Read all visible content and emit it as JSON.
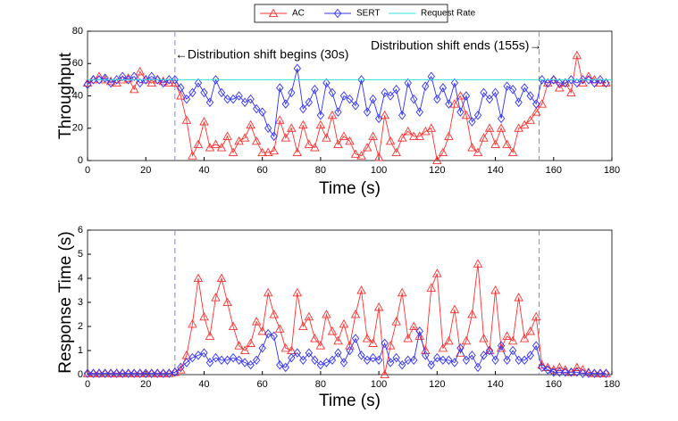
{
  "chart_data": [
    {
      "type": "line",
      "xlabel": "Time (s)",
      "ylabel": "Throughput",
      "xlim": [
        0,
        180
      ],
      "xticks": [
        0,
        20,
        40,
        60,
        80,
        100,
        120,
        140,
        160,
        180
      ],
      "ylim": [
        0,
        80
      ],
      "yticks": [
        0,
        20,
        40,
        60,
        80
      ],
      "x": [
        0,
        2,
        4,
        6,
        8,
        10,
        12,
        14,
        16,
        18,
        20,
        22,
        24,
        26,
        28,
        30,
        32,
        34,
        36,
        38,
        40,
        42,
        44,
        46,
        48,
        50,
        52,
        54,
        56,
        58,
        60,
        62,
        64,
        66,
        68,
        70,
        72,
        74,
        76,
        78,
        80,
        82,
        84,
        86,
        88,
        90,
        92,
        94,
        96,
        98,
        100,
        102,
        104,
        106,
        108,
        110,
        112,
        114,
        116,
        118,
        120,
        122,
        124,
        126,
        128,
        130,
        132,
        134,
        136,
        138,
        140,
        142,
        144,
        146,
        148,
        150,
        152,
        154,
        156,
        158,
        160,
        162,
        164,
        166,
        168,
        170,
        172,
        174,
        176,
        178
      ],
      "series": [
        {
          "name": "AC",
          "color": "#ff3030",
          "marker": "triangle",
          "values": [
            48,
            50,
            52,
            50,
            49,
            48,
            50,
            51,
            44,
            55,
            50,
            48,
            50,
            49,
            48,
            48,
            40,
            25,
            3,
            10,
            24,
            8,
            10,
            8,
            15,
            5,
            12,
            14,
            22,
            12,
            5,
            5,
            6,
            25,
            14,
            20,
            5,
            22,
            10,
            8,
            22,
            14,
            28,
            10,
            15,
            12,
            4,
            3,
            8,
            15,
            2,
            28,
            12,
            5,
            14,
            18,
            15,
            15,
            18,
            20,
            0,
            5,
            15,
            35,
            40,
            28,
            8,
            5,
            14,
            20,
            10,
            20,
            10,
            5,
            20,
            22,
            25,
            30,
            35,
            48,
            50,
            45,
            48,
            42,
            65,
            48,
            52,
            50,
            48,
            48
          ]
        },
        {
          "name": "SERT",
          "color": "#3030ff",
          "marker": "diamond",
          "values": [
            47,
            50,
            50,
            51,
            48,
            50,
            52,
            50,
            52,
            48,
            50,
            52,
            50,
            48,
            50,
            50,
            45,
            38,
            42,
            48,
            42,
            36,
            50,
            42,
            38,
            38,
            40,
            36,
            38,
            32,
            30,
            20,
            15,
            45,
            35,
            42,
            57,
            32,
            36,
            44,
            28,
            48,
            42,
            30,
            40,
            38,
            34,
            50,
            30,
            38,
            26,
            42,
            40,
            44,
            28,
            48,
            38,
            30,
            46,
            52,
            38,
            45,
            35,
            48,
            30,
            40,
            24,
            28,
            42,
            38,
            42,
            26,
            46,
            44,
            36,
            45,
            40,
            35,
            50,
            48,
            50,
            48,
            48,
            50,
            48,
            50,
            50,
            48,
            50,
            48
          ]
        },
        {
          "name": "Request Rate",
          "color": "#30e0e0",
          "x": [
            0,
            180
          ],
          "values": [
            50,
            50
          ]
        }
      ],
      "vlines": [
        30,
        155
      ],
      "annotations": [
        "←Distribution shift begins (30s)",
        "Distribution shift ends (155s)→"
      ],
      "legend": "top"
    },
    {
      "type": "line",
      "xlabel": "Time (s)",
      "ylabel": "Response Time (s)",
      "xlim": [
        0,
        180
      ],
      "xticks": [
        0,
        20,
        40,
        60,
        80,
        100,
        120,
        140,
        160,
        180
      ],
      "ylim": [
        0,
        6
      ],
      "yticks": [
        0,
        1,
        2,
        3,
        4,
        5,
        6
      ],
      "x": [
        0,
        2,
        4,
        6,
        8,
        10,
        12,
        14,
        16,
        18,
        20,
        22,
        24,
        26,
        28,
        30,
        32,
        34,
        36,
        38,
        40,
        42,
        44,
        46,
        48,
        50,
        52,
        54,
        56,
        58,
        60,
        62,
        64,
        66,
        68,
        70,
        72,
        74,
        76,
        78,
        80,
        82,
        84,
        86,
        88,
        90,
        92,
        94,
        96,
        98,
        100,
        102,
        104,
        106,
        108,
        110,
        112,
        114,
        116,
        118,
        120,
        122,
        124,
        126,
        128,
        130,
        132,
        134,
        136,
        138,
        140,
        142,
        144,
        146,
        148,
        150,
        152,
        154,
        156,
        158,
        160,
        162,
        164,
        166,
        168,
        170,
        172,
        174,
        176,
        178
      ],
      "series": [
        {
          "color": "#ff3030",
          "marker": "triangle",
          "values": [
            0.05,
            0.05,
            0.05,
            0.05,
            0.05,
            0.05,
            0.05,
            0.05,
            0.05,
            0.05,
            0.05,
            0.05,
            0.05,
            0.05,
            0.05,
            0.1,
            0.2,
            0.8,
            2.1,
            4,
            2.4,
            1.6,
            3.2,
            4,
            3,
            2,
            1.2,
            1,
            1.3,
            2.2,
            1.8,
            3.4,
            2.5,
            1.9,
            1.1,
            1,
            3.4,
            2,
            2.4,
            1.5,
            1.2,
            2.5,
            1.8,
            1.4,
            2.1,
            1.2,
            2.5,
            3.5,
            1.5,
            1.3,
            2.8,
            0,
            1.2,
            2.2,
            3.4,
            1.5,
            2,
            1.6,
            1,
            3.6,
            4.2,
            1.1,
            1.4,
            2.7,
            0.9,
            1.4,
            2.5,
            4.6,
            1.5,
            1,
            3.5,
            1.1,
            1.6,
            1.4,
            3.2,
            1.5,
            1.8,
            2.4,
            0.4,
            0.3,
            0.2,
            0.3,
            0.2,
            0.1,
            0.3,
            0.2,
            0.1,
            0.05,
            0.05,
            0.05
          ]
        },
        {
          "color": "#3030ff",
          "marker": "diamond",
          "values": [
            0.05,
            0.05,
            0.05,
            0.05,
            0.05,
            0.05,
            0.05,
            0.05,
            0.05,
            0.05,
            0.05,
            0.05,
            0.05,
            0.05,
            0.05,
            0.1,
            0.3,
            0.5,
            0.7,
            0.8,
            0.9,
            0.5,
            0.7,
            0.6,
            0.6,
            0.7,
            0.6,
            0.5,
            0.4,
            0.6,
            1.1,
            1.7,
            1.6,
            0.4,
            0.3,
            0.7,
            0.9,
            0.6,
            0.9,
            0.6,
            0.4,
            0.5,
            0.6,
            0.9,
            0.5,
            1,
            1.5,
            0.8,
            0.6,
            0.7,
            0.6,
            1.3,
            0.5,
            0.7,
            0.4,
            0.6,
            0.6,
            1.8,
            0.8,
            0.4,
            0.7,
            0.6,
            0.6,
            0.5,
            1.1,
            0.6,
            0.8,
            0.3,
            0.8,
            1,
            0.6,
            1.2,
            0.6,
            1,
            0.6,
            0.6,
            0.8,
            1.2,
            0.3,
            0.2,
            0.1,
            0.1,
            0.1,
            0.1,
            0.1,
            0.05,
            0.05,
            0.05,
            0.05,
            0.05
          ]
        }
      ],
      "vlines": [
        30,
        155
      ]
    }
  ]
}
